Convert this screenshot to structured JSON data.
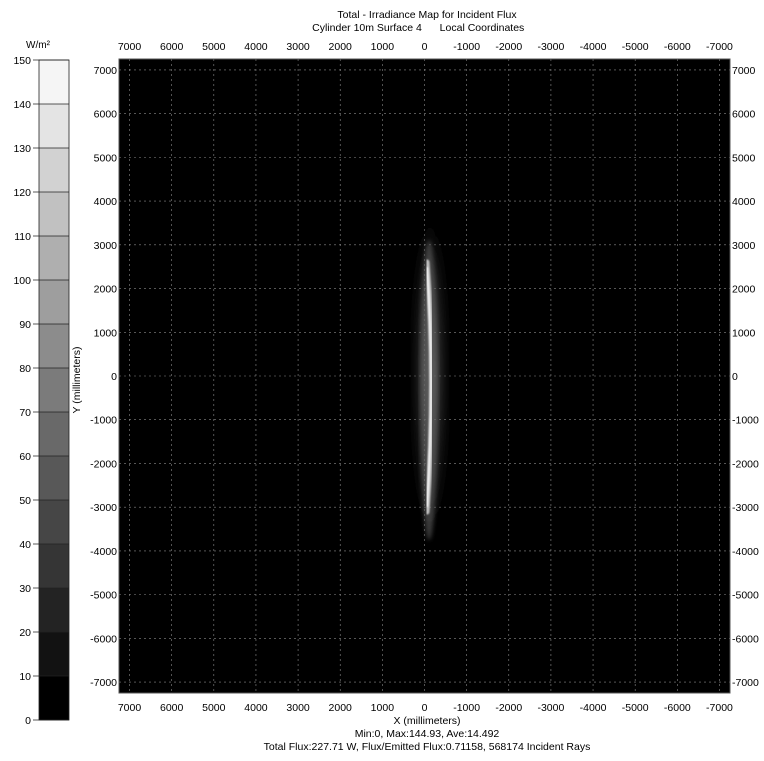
{
  "header": {
    "title": "Total - Irradiance Map for Incident Flux",
    "subtitle_left": "Cylinder 10m Surface 4",
    "subtitle_right": "Local Coordinates"
  },
  "colorbar": {
    "unit": "W/m²",
    "min": 0,
    "max": 150,
    "step": 10,
    "levels": [
      0,
      10,
      20,
      30,
      40,
      50,
      60,
      70,
      80,
      90,
      100,
      110,
      120,
      130,
      140,
      150
    ]
  },
  "footer": {
    "stats": "Min:0, Max:144.93, Ave:14.492",
    "flux": "Total Flux:227.71 W, Flux/Emitted Flux:0.71158, 568174 Incident Rays"
  },
  "chart_data": {
    "type": "heatmap",
    "title": "Total - Irradiance Map for Incident Flux",
    "xlabel": "X (millimeters)",
    "ylabel": "Y (millimeters)",
    "xlim": [
      7250,
      -7250
    ],
    "ylim": [
      -7250,
      7250
    ],
    "xticks": [
      7000,
      6000,
      5000,
      4000,
      3000,
      2000,
      1000,
      0,
      -1000,
      -2000,
      -3000,
      -4000,
      -5000,
      -6000,
      -7000
    ],
    "yticks": [
      7000,
      6000,
      5000,
      4000,
      3000,
      2000,
      1000,
      0,
      -1000,
      -2000,
      -3000,
      -4000,
      -5000,
      -6000,
      -7000
    ],
    "grid": true,
    "background_color": "#000000",
    "grid_color": "#8a8a8a",
    "features": [
      {
        "name": "halo",
        "x": [
          -350,
          100
        ],
        "y": [
          -4600,
          3900
        ]
      },
      {
        "name": "bright-arc",
        "x": [
          -150,
          50
        ],
        "y": [
          -3000,
          2500
        ],
        "peak": 144.93
      }
    ],
    "min": 0,
    "max": 144.93,
    "average": 14.492,
    "total_flux_W": 227.71,
    "flux_ratio": 0.71158,
    "incident_rays": 568174
  }
}
